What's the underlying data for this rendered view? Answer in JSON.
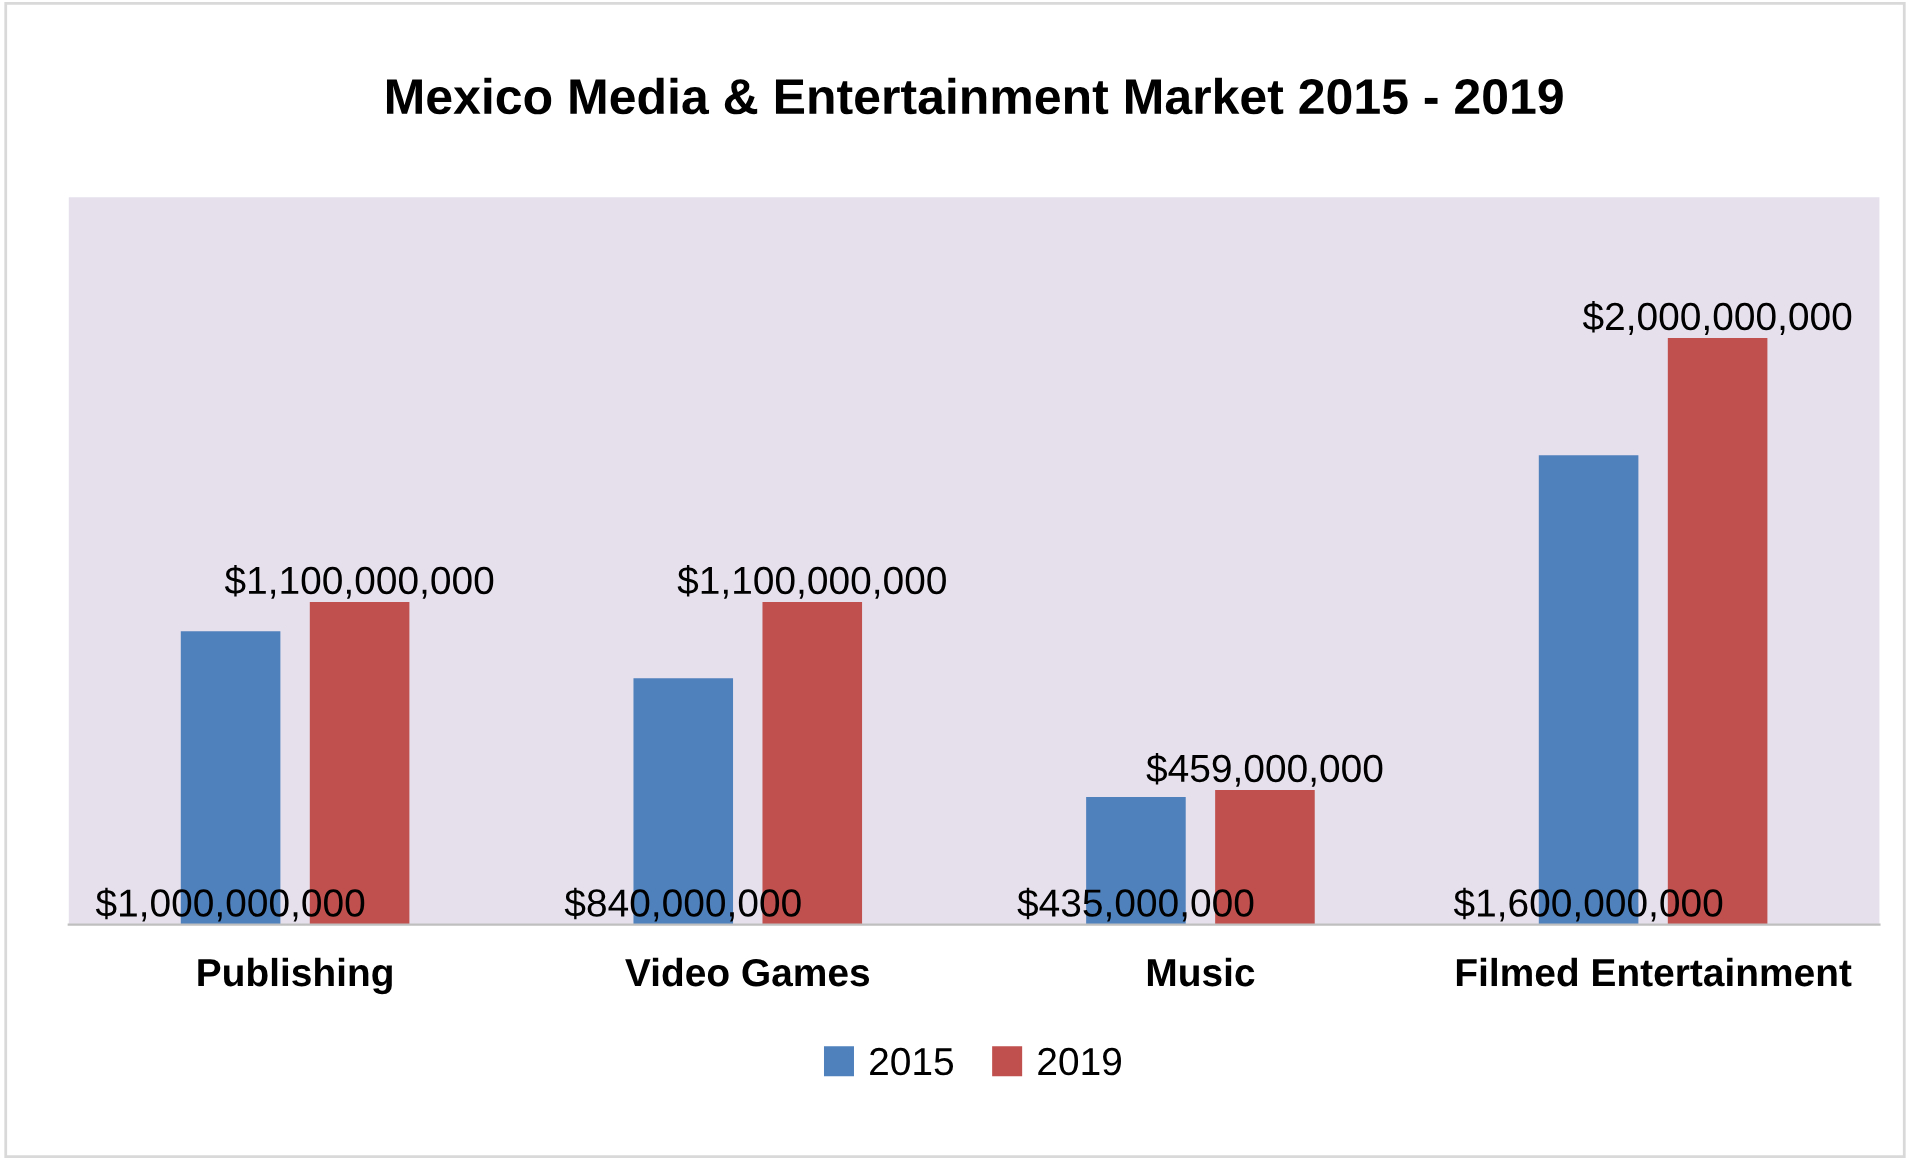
{
  "chart_data": {
    "type": "bar",
    "title": "Mexico Media & Entertainment Market 2015 - 2019",
    "categories": [
      "Publishing",
      "Video Games",
      "Music",
      "Filmed Entertainment"
    ],
    "series": [
      {
        "name": "2015",
        "color": "#4f81bd",
        "values": [
          1000000000,
          840000000,
          435000000,
          1600000000
        ],
        "value_labels": [
          "$1,000,000,000",
          "$840,000,000",
          "$435,000,000",
          "$1,600,000,000"
        ]
      },
      {
        "name": "2019",
        "color": "#c0504d",
        "values": [
          1100000000,
          1100000000,
          459000000,
          2000000000
        ],
        "value_labels": [
          "$1,100,000,000",
          "$1,100,000,000",
          "$459,000,000",
          "$2,000,000,000"
        ]
      }
    ],
    "grid": false,
    "legend": "bottom"
  }
}
